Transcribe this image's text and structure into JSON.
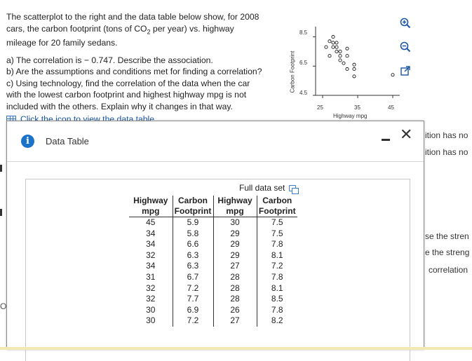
{
  "question": {
    "intro_line1": "The scatterplot to the right and the data table below show, for 2008",
    "intro_line2_pre": "cars, the carbon footprint (tons of CO",
    "intro_line2_sub": "2",
    "intro_line2_post": " per year) vs. highway",
    "intro_line3": "mileage for 20 family sedans.",
    "part_a": "a) The correlation is − 0.747. Describe the association.",
    "part_b": "b) Are the assumptions and conditions met for finding a correlation?",
    "part_c1": "c) Using technology, find the correlation of the data when the car",
    "part_c2": "with the lowest carbon footprint and highest highway mpg is not",
    "part_c3": "included with the others. Explain why it changes in that way.",
    "table_link": "Click the icon to view the data table."
  },
  "chart_data": {
    "type": "scatter",
    "xlabel": "Highway mpg",
    "ylabel": "Carbon Footprint",
    "xticks": [
      "25",
      "35",
      "45"
    ],
    "yticks": [
      "4.5",
      "6.5",
      "8.5"
    ],
    "xlim": [
      23,
      47
    ],
    "ylim": [
      4.5,
      9.2
    ],
    "points": [
      {
        "x": 45,
        "y": 5.9
      },
      {
        "x": 34,
        "y": 5.8
      },
      {
        "x": 34,
        "y": 6.6
      },
      {
        "x": 32,
        "y": 6.3
      },
      {
        "x": 34,
        "y": 6.3
      },
      {
        "x": 31,
        "y": 6.7
      },
      {
        "x": 32,
        "y": 7.2
      },
      {
        "x": 32,
        "y": 7.7
      },
      {
        "x": 30,
        "y": 6.9
      },
      {
        "x": 30,
        "y": 7.2
      },
      {
        "x": 30,
        "y": 7.5
      },
      {
        "x": 29,
        "y": 7.5
      },
      {
        "x": 29,
        "y": 7.8
      },
      {
        "x": 29,
        "y": 8.1
      },
      {
        "x": 27,
        "y": 7.2
      },
      {
        "x": 28,
        "y": 7.8
      },
      {
        "x": 28,
        "y": 8.1
      },
      {
        "x": 28,
        "y": 8.5
      },
      {
        "x": 26,
        "y": 7.8
      },
      {
        "x": 27,
        "y": 8.2
      }
    ]
  },
  "dialog": {
    "title": "Data Table",
    "full_data_set": "Full data set"
  },
  "data_table": {
    "headers_top": [
      "Highway",
      "Carbon",
      "Highway",
      "Carbon"
    ],
    "headers_sub": [
      "mpg",
      "Footprint",
      "mpg",
      "Footprint"
    ],
    "rows": [
      [
        "45",
        "5.9",
        "30",
        "7.5"
      ],
      [
        "34",
        "5.8",
        "29",
        "7.5"
      ],
      [
        "34",
        "6.6",
        "29",
        "7.8"
      ],
      [
        "32",
        "6.3",
        "29",
        "8.1"
      ],
      [
        "34",
        "6.3",
        "27",
        "7.2"
      ],
      [
        "31",
        "6.7",
        "28",
        "7.8"
      ],
      [
        "32",
        "7.2",
        "28",
        "8.1"
      ],
      [
        "32",
        "7.7",
        "28",
        "8.5"
      ],
      [
        "30",
        "6.9",
        "26",
        "7.8"
      ],
      [
        "30",
        "7.2",
        "27",
        "8.2"
      ]
    ]
  },
  "background_right": [
    "ition has no",
    "ition has no",
    "se the stren",
    "e the streng",
    "correlation"
  ],
  "background_left_mark": "O",
  "colors": {
    "accent": "#1a56a8",
    "info": "#1a73c9"
  },
  "icons": [
    "zoom-in-icon",
    "zoom-out-icon",
    "expand-icon",
    "info-icon",
    "grid-icon",
    "copy-icon",
    "close-icon",
    "minimize-icon"
  ]
}
